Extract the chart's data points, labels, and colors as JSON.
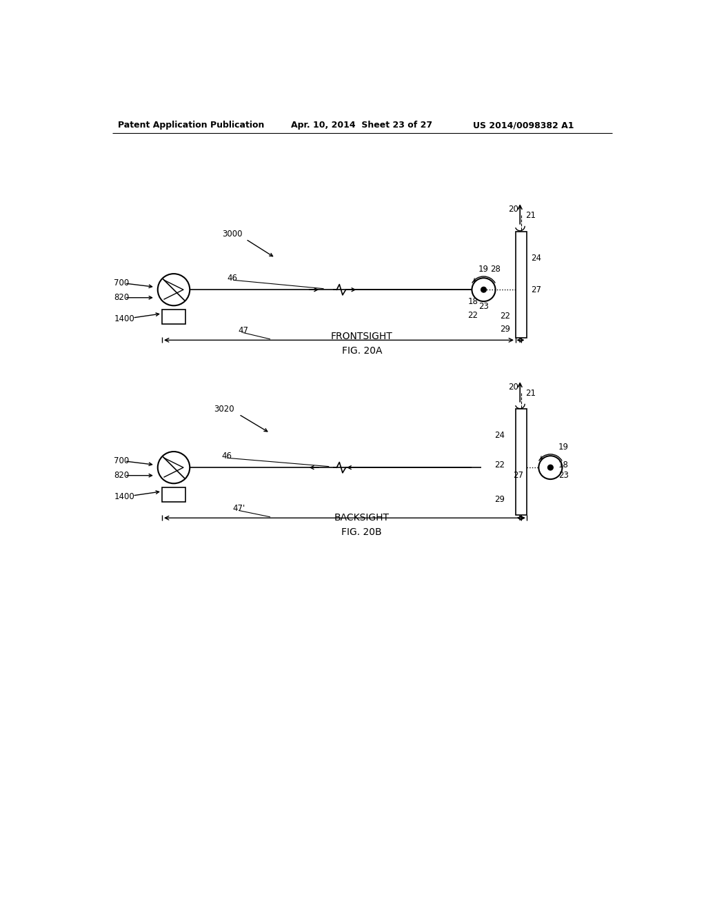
{
  "bg_color": "#ffffff",
  "header_left": "Patent Application Publication",
  "header_mid": "Apr. 10, 2014  Sheet 23 of 27",
  "header_right": "US 2014/0098382 A1",
  "fig_a_label": "FRONTSIGHT",
  "fig_a_sub": "FIG. 20A",
  "fig_b_label": "BACKSIGHT",
  "fig_b_sub": "FIG. 20B",
  "fig_a_ref": "3000",
  "fig_b_ref": "3020"
}
